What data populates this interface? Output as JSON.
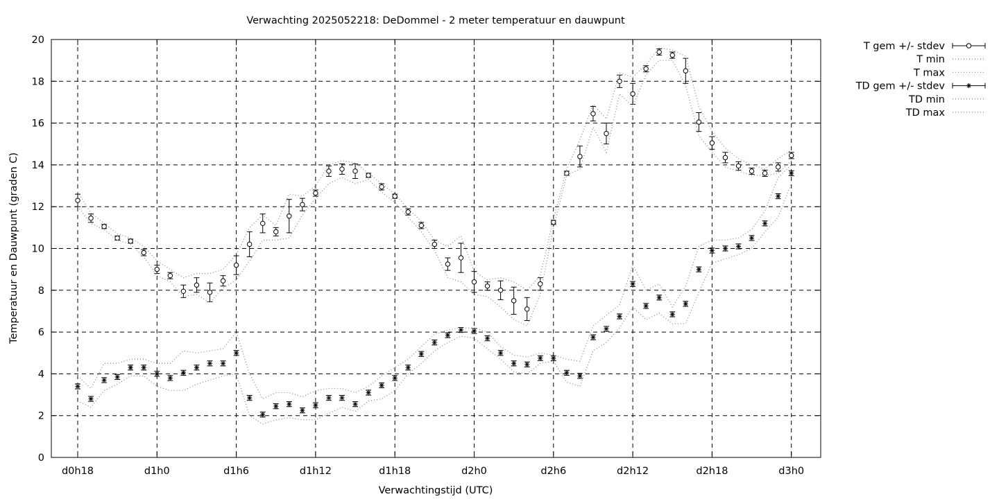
{
  "chart_data": {
    "type": "line",
    "title": "Verwachting 2025052218: DeDommel - 2 meter temperatuur en dauwpunt",
    "xlabel": "Verwachtingstijd (UTC)",
    "ylabel": "Temperatuur en Dauwpunt (graden C)",
    "xlim": [
      0,
      57
    ],
    "ylim": [
      0,
      20
    ],
    "yticks": [
      0,
      2,
      4,
      6,
      8,
      10,
      12,
      14,
      16,
      18,
      20
    ],
    "xticks": [
      {
        "x": 0,
        "label": "d0h18"
      },
      {
        "x": 6,
        "label": "d1h0"
      },
      {
        "x": 12,
        "label": "d1h6"
      },
      {
        "x": 18,
        "label": "d1h12"
      },
      {
        "x": 24,
        "label": "d1h18"
      },
      {
        "x": 30,
        "label": "d2h0"
      },
      {
        "x": 36,
        "label": "d2h6"
      },
      {
        "x": 42,
        "label": "d2h12"
      },
      {
        "x": 48,
        "label": "d2h18"
      },
      {
        "x": 54,
        "label": "d3h0"
      }
    ],
    "grid": true,
    "legend_position": "outside-right",
    "x": [
      0,
      1,
      2,
      3,
      4,
      5,
      6,
      7,
      8,
      9,
      10,
      11,
      12,
      13,
      14,
      15,
      16,
      17,
      18,
      19,
      20,
      21,
      22,
      23,
      24,
      25,
      26,
      27,
      28,
      29,
      30,
      31,
      32,
      33,
      34,
      35,
      36,
      37,
      38,
      39,
      40,
      41,
      42,
      43,
      44,
      45,
      46,
      47,
      48,
      49,
      50,
      51,
      52,
      53,
      54
    ],
    "series": [
      {
        "name": "T gem +/- stdev",
        "marker": "circle",
        "mean": [
          12.3,
          11.45,
          11.05,
          10.5,
          10.35,
          9.8,
          9.0,
          8.7,
          7.95,
          8.25,
          7.9,
          8.45,
          9.2,
          10.2,
          11.2,
          10.8,
          11.55,
          12.1,
          12.65,
          13.7,
          13.8,
          13.7,
          13.5,
          12.95,
          12.5,
          11.75,
          11.1,
          10.2,
          9.25,
          9.55,
          8.4,
          8.2,
          8.0,
          7.5,
          7.1,
          8.3,
          11.25,
          13.6,
          14.4,
          16.45,
          15.5,
          18.0,
          17.4,
          18.6,
          19.4,
          19.25,
          18.5,
          16.05,
          15.05,
          14.35,
          13.95,
          13.7,
          13.6,
          13.9,
          14.45
        ],
        "stdev": [
          0.3,
          0.2,
          0.1,
          0.1,
          0.1,
          0.15,
          0.2,
          0.15,
          0.3,
          0.35,
          0.45,
          0.25,
          0.45,
          0.6,
          0.45,
          0.2,
          0.8,
          0.3,
          0.15,
          0.25,
          0.25,
          0.35,
          0.1,
          0.15,
          0.1,
          0.15,
          0.15,
          0.2,
          0.3,
          0.7,
          0.5,
          0.2,
          0.45,
          0.65,
          0.55,
          0.3,
          0.1,
          0.1,
          0.5,
          0.35,
          0.5,
          0.3,
          0.5,
          0.15,
          0.15,
          0.15,
          0.6,
          0.45,
          0.3,
          0.25,
          0.2,
          0.15,
          0.15,
          0.2,
          0.15
        ]
      },
      {
        "name": "T min",
        "style": "dotted",
        "values": [
          12.0,
          11.2,
          10.9,
          10.4,
          10.2,
          9.6,
          8.7,
          8.4,
          7.7,
          7.8,
          7.4,
          8.1,
          8.5,
          9.4,
          10.4,
          10.4,
          10.5,
          11.6,
          12.4,
          13.1,
          13.4,
          13.1,
          13.3,
          12.7,
          12.2,
          11.5,
          10.8,
          9.9,
          8.6,
          8.4,
          7.8,
          7.7,
          7.2,
          6.6,
          6.3,
          7.8,
          11.0,
          13.5,
          13.8,
          15.8,
          14.6,
          17.4,
          16.8,
          18.3,
          19.0,
          19.0,
          17.8,
          15.4,
          14.6,
          13.9,
          13.7,
          13.5,
          13.5,
          13.6,
          14.2
        ]
      },
      {
        "name": "T max",
        "style": "dotted",
        "values": [
          12.7,
          11.7,
          11.2,
          10.7,
          10.5,
          10.1,
          9.4,
          9.0,
          8.6,
          8.8,
          8.8,
          9.0,
          9.7,
          11.0,
          11.6,
          11.1,
          12.6,
          12.5,
          13.0,
          14.0,
          14.2,
          14.1,
          13.6,
          13.1,
          12.6,
          11.9,
          11.3,
          10.4,
          10.1,
          10.6,
          8.9,
          8.5,
          8.6,
          8.4,
          8.0,
          8.7,
          11.4,
          13.8,
          15.2,
          16.9,
          16.2,
          18.4,
          18.2,
          18.8,
          19.6,
          19.5,
          19.2,
          16.8,
          15.6,
          14.8,
          14.3,
          14.0,
          13.8,
          14.3,
          14.7
        ]
      },
      {
        "name": "TD gem +/- stdev",
        "marker": "star",
        "mean": [
          3.4,
          2.8,
          3.7,
          3.85,
          4.3,
          4.3,
          4.0,
          3.8,
          4.05,
          4.3,
          4.5,
          4.5,
          5.0,
          2.85,
          2.05,
          2.45,
          2.55,
          2.25,
          2.5,
          2.85,
          2.85,
          2.55,
          3.1,
          3.45,
          3.8,
          4.3,
          4.95,
          5.5,
          5.85,
          6.1,
          6.05,
          5.7,
          5.0,
          4.5,
          4.45,
          4.75,
          4.75,
          4.05,
          3.9,
          5.75,
          6.15,
          6.75,
          8.3,
          7.25,
          7.65,
          6.85,
          7.35,
          9.0,
          9.9,
          10.0,
          10.1,
          10.5,
          11.2,
          12.5,
          13.6
        ]
      },
      {
        "name": "TD min",
        "style": "dotted",
        "values": [
          2.7,
          2.4,
          3.2,
          3.5,
          3.9,
          3.9,
          3.4,
          3.2,
          3.2,
          3.5,
          3.7,
          3.9,
          4.0,
          2.0,
          1.6,
          1.8,
          1.9,
          1.8,
          1.8,
          2.1,
          2.4,
          2.2,
          2.7,
          2.8,
          3.2,
          4.0,
          4.5,
          5.1,
          5.5,
          5.8,
          5.7,
          5.2,
          4.7,
          4.1,
          4.0,
          4.5,
          4.6,
          3.6,
          3.4,
          5.1,
          5.5,
          6.2,
          7.2,
          6.6,
          6.9,
          6.4,
          6.4,
          7.9,
          9.3,
          9.5,
          9.7,
          10.0,
          10.8,
          11.5,
          13.1
        ]
      },
      {
        "name": "TD max",
        "style": "dotted",
        "values": [
          3.9,
          3.3,
          4.5,
          4.5,
          4.7,
          4.7,
          4.5,
          4.5,
          5.1,
          5.0,
          5.1,
          5.2,
          6.0,
          4.0,
          2.8,
          3.1,
          3.1,
          2.9,
          3.2,
          3.3,
          3.3,
          3.1,
          3.4,
          3.9,
          4.3,
          4.7,
          5.3,
          5.9,
          6.1,
          6.2,
          6.2,
          6.0,
          5.3,
          4.9,
          4.8,
          5.0,
          4.9,
          4.7,
          4.6,
          6.3,
          6.8,
          7.3,
          9.2,
          8.0,
          8.3,
          7.2,
          8.2,
          10.1,
          10.4,
          10.4,
          10.5,
          10.9,
          11.8,
          13.4,
          14.0
        ]
      }
    ]
  }
}
